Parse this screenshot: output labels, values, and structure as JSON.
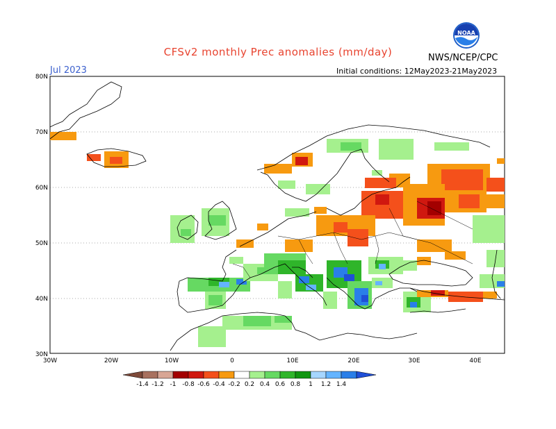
{
  "header": {
    "title": "CFSv2 monthly Prec anomalies (mm/day)",
    "org": "NWS/NCEP/CPC",
    "logo_text": "NOAA",
    "month": "Jul 2023",
    "initial_conditions": "Initial conditions: 12May2023-21May2023"
  },
  "axes": {
    "lat_labels": [
      "80N",
      "70N",
      "60N",
      "50N",
      "40N",
      "30N"
    ],
    "lon_labels": [
      "30W",
      "20W",
      "10W",
      "0",
      "10E",
      "20E",
      "30E",
      "40E"
    ]
  },
  "colorbar": {
    "labels": [
      "-1.4",
      "-1.2",
      "-1",
      "-0.8",
      "-0.6",
      "-0.4",
      "-0.2",
      "0.2",
      "0.4",
      "0.6",
      "0.8",
      "1",
      "1.2",
      "1.4"
    ],
    "colors": [
      "#7e4a3a",
      "#a8715f",
      "#d8a695",
      "#a30000",
      "#d0180f",
      "#f4501b",
      "#f79a10",
      "#ffffff",
      "#a5f08e",
      "#66d962",
      "#2fb52a",
      "#109510",
      "#a6d6ff",
      "#64b4ff",
      "#2a7fe8",
      "#1f4fd8"
    ]
  },
  "colors": {
    "title": "#e8432f",
    "month": "#3a5fcd",
    "coast": "#000000"
  }
}
